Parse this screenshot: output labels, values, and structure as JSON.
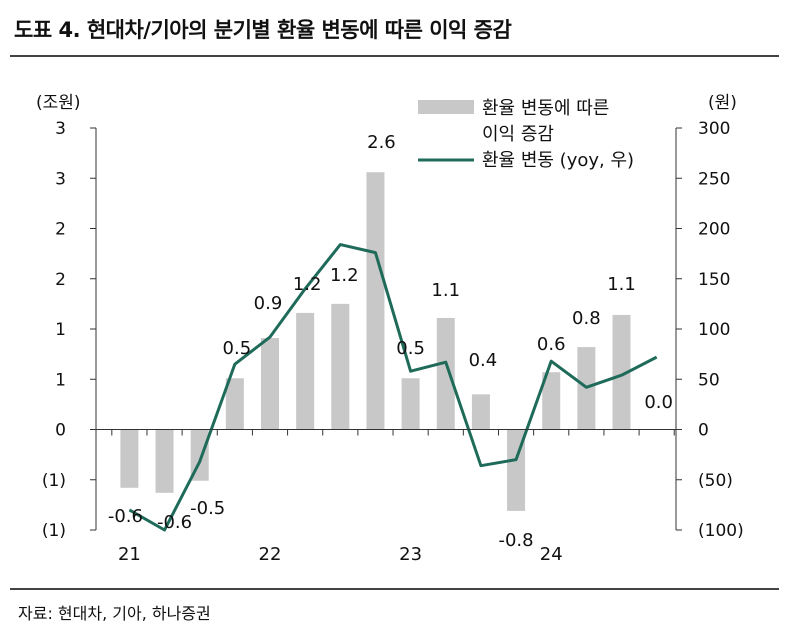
{
  "title": "도표 4. 현대차/기아의 분기별 환율 변동에 따른 이익 증감",
  "source": "자료: 현대차, 기아, 하나증권",
  "colors": {
    "bar": "#c8c8c8",
    "line": "#1f6b5a",
    "axis": "#333333"
  },
  "chart_data": {
    "type": "bar",
    "left_unit": "(조원)",
    "right_unit": "(원)",
    "left_ticks": [
      "3",
      "3",
      "2",
      "2",
      "1",
      "1",
      "0",
      "(1)",
      "(1)"
    ],
    "right_ticks": [
      "300",
      "250",
      "200",
      "150",
      "100",
      "50",
      "0",
      "(50)",
      "(100)"
    ],
    "ylim_left": [
      -1.0,
      3.0
    ],
    "ylim_right": [
      -100,
      300
    ],
    "x_group_labels": [
      "21",
      "22",
      "23",
      "24"
    ],
    "series": [
      {
        "name": "환율 변동에 따른 이익 증감",
        "axis": "left",
        "type": "bar",
        "values": [
          -0.58,
          -0.63,
          -0.51,
          0.51,
          0.91,
          1.16,
          1.25,
          2.56,
          0.51,
          1.11,
          0.35,
          -0.81,
          0.57,
          0.82,
          1.14,
          0.0
        ],
        "labels": [
          "-0.6",
          "-0.6",
          "-0.5",
          "0.5",
          "0.9",
          "1.2",
          "1.2",
          "2.6",
          "0.5",
          "1.1",
          "0.4",
          "-0.8",
          "0.6",
          "0.8",
          "1.1",
          "0.0"
        ]
      },
      {
        "name": "환율 변동 (yoy, 우)",
        "axis": "right",
        "type": "line",
        "values": [
          -80,
          -100,
          -32,
          65,
          92,
          140,
          184,
          176,
          58,
          67,
          -36,
          -30,
          68,
          42,
          54,
          72
        ]
      }
    ],
    "legend": [
      "환율 변동에 따른",
      "이익 증감",
      "환율 변동 (yoy, 우)"
    ]
  }
}
